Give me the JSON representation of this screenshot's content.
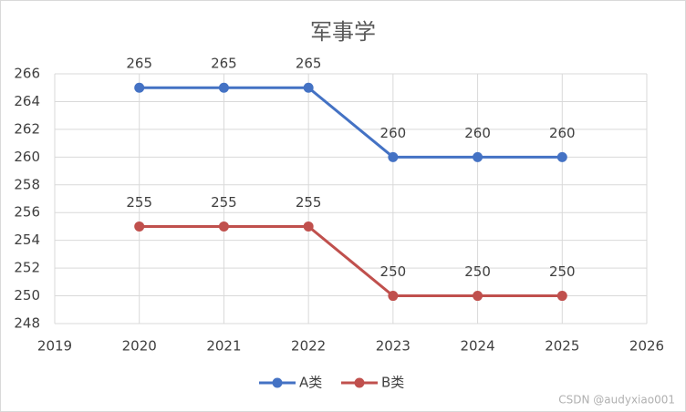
{
  "chart_data": {
    "type": "line",
    "title": "军事学",
    "x": [
      2020,
      2021,
      2022,
      2023,
      2024,
      2025
    ],
    "series": [
      {
        "name": "A类",
        "color": "#4472c4",
        "values": [
          265,
          265,
          265,
          260,
          260,
          260
        ]
      },
      {
        "name": "B类",
        "color": "#c0504d",
        "values": [
          255,
          255,
          255,
          250,
          250,
          250
        ]
      }
    ],
    "xlim": [
      2019,
      2026
    ],
    "xticks": [
      2019,
      2020,
      2021,
      2022,
      2023,
      2024,
      2025,
      2026
    ],
    "ylim": [
      248,
      266
    ],
    "yticks": [
      248,
      250,
      252,
      254,
      256,
      258,
      260,
      262,
      264,
      266
    ],
    "grid": true,
    "legend": "bottom",
    "watermark": "CSDN @audyxiao001"
  }
}
